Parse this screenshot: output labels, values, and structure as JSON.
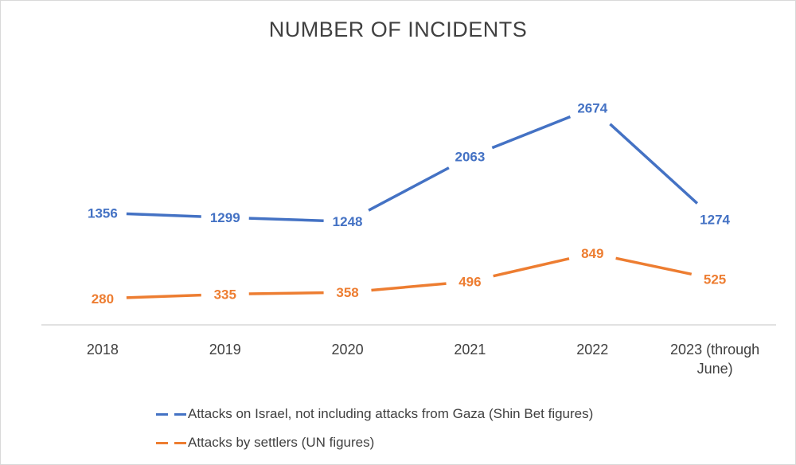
{
  "chart_data": {
    "type": "line",
    "title": "NUMBER OF INCIDENTS",
    "xlabel": "",
    "ylabel": "",
    "categories": [
      "2018",
      "2019",
      "2020",
      "2021",
      "2022",
      "2023 (through June)"
    ],
    "category_lines": [
      [
        "2018"
      ],
      [
        "2019"
      ],
      [
        "2020"
      ],
      [
        "2021"
      ],
      [
        "2022"
      ],
      [
        "2023 (through",
        "June)"
      ]
    ],
    "ylim": [
      0,
      2900
    ],
    "grid": false,
    "y_axis_visible": false,
    "legend_position": "bottom",
    "series": [
      {
        "name": "Attacks on Israel, not including attacks from Gaza (Shin Bet figures)",
        "color": "#4472C4",
        "values": [
          1356,
          1299,
          1248,
          2063,
          2674,
          1274
        ],
        "labels": [
          "1356",
          "1299",
          "1248",
          "2063",
          "2674",
          "1274"
        ]
      },
      {
        "name": "Attacks by settlers (UN figures)",
        "color": "#ED7D31",
        "values": [
          280,
          335,
          358,
          496,
          849,
          525
        ],
        "labels": [
          "280",
          "335",
          "358",
          "496",
          "849",
          "525"
        ]
      }
    ]
  }
}
